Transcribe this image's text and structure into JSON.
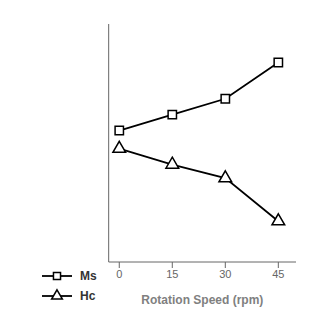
{
  "chart_data": {
    "type": "line",
    "xlabel": "Rotation Speed (rpm)",
    "x": [
      0,
      15,
      30,
      45
    ],
    "series": [
      {
        "name": "Ms",
        "color": "#000000",
        "marker": "square",
        "values": [
          0.58,
          0.65,
          0.72,
          0.88
        ]
      },
      {
        "name": "Hc",
        "color": "#000000",
        "marker": "triangle",
        "values": [
          0.5,
          0.43,
          0.37,
          0.18
        ]
      }
    ],
    "xlim": [
      -3,
      50
    ],
    "xticks": [
      0,
      15,
      30,
      45
    ],
    "ylim": [
      0.0,
      1.05
    ],
    "tick_labels": "x",
    "legend": "lower left"
  }
}
